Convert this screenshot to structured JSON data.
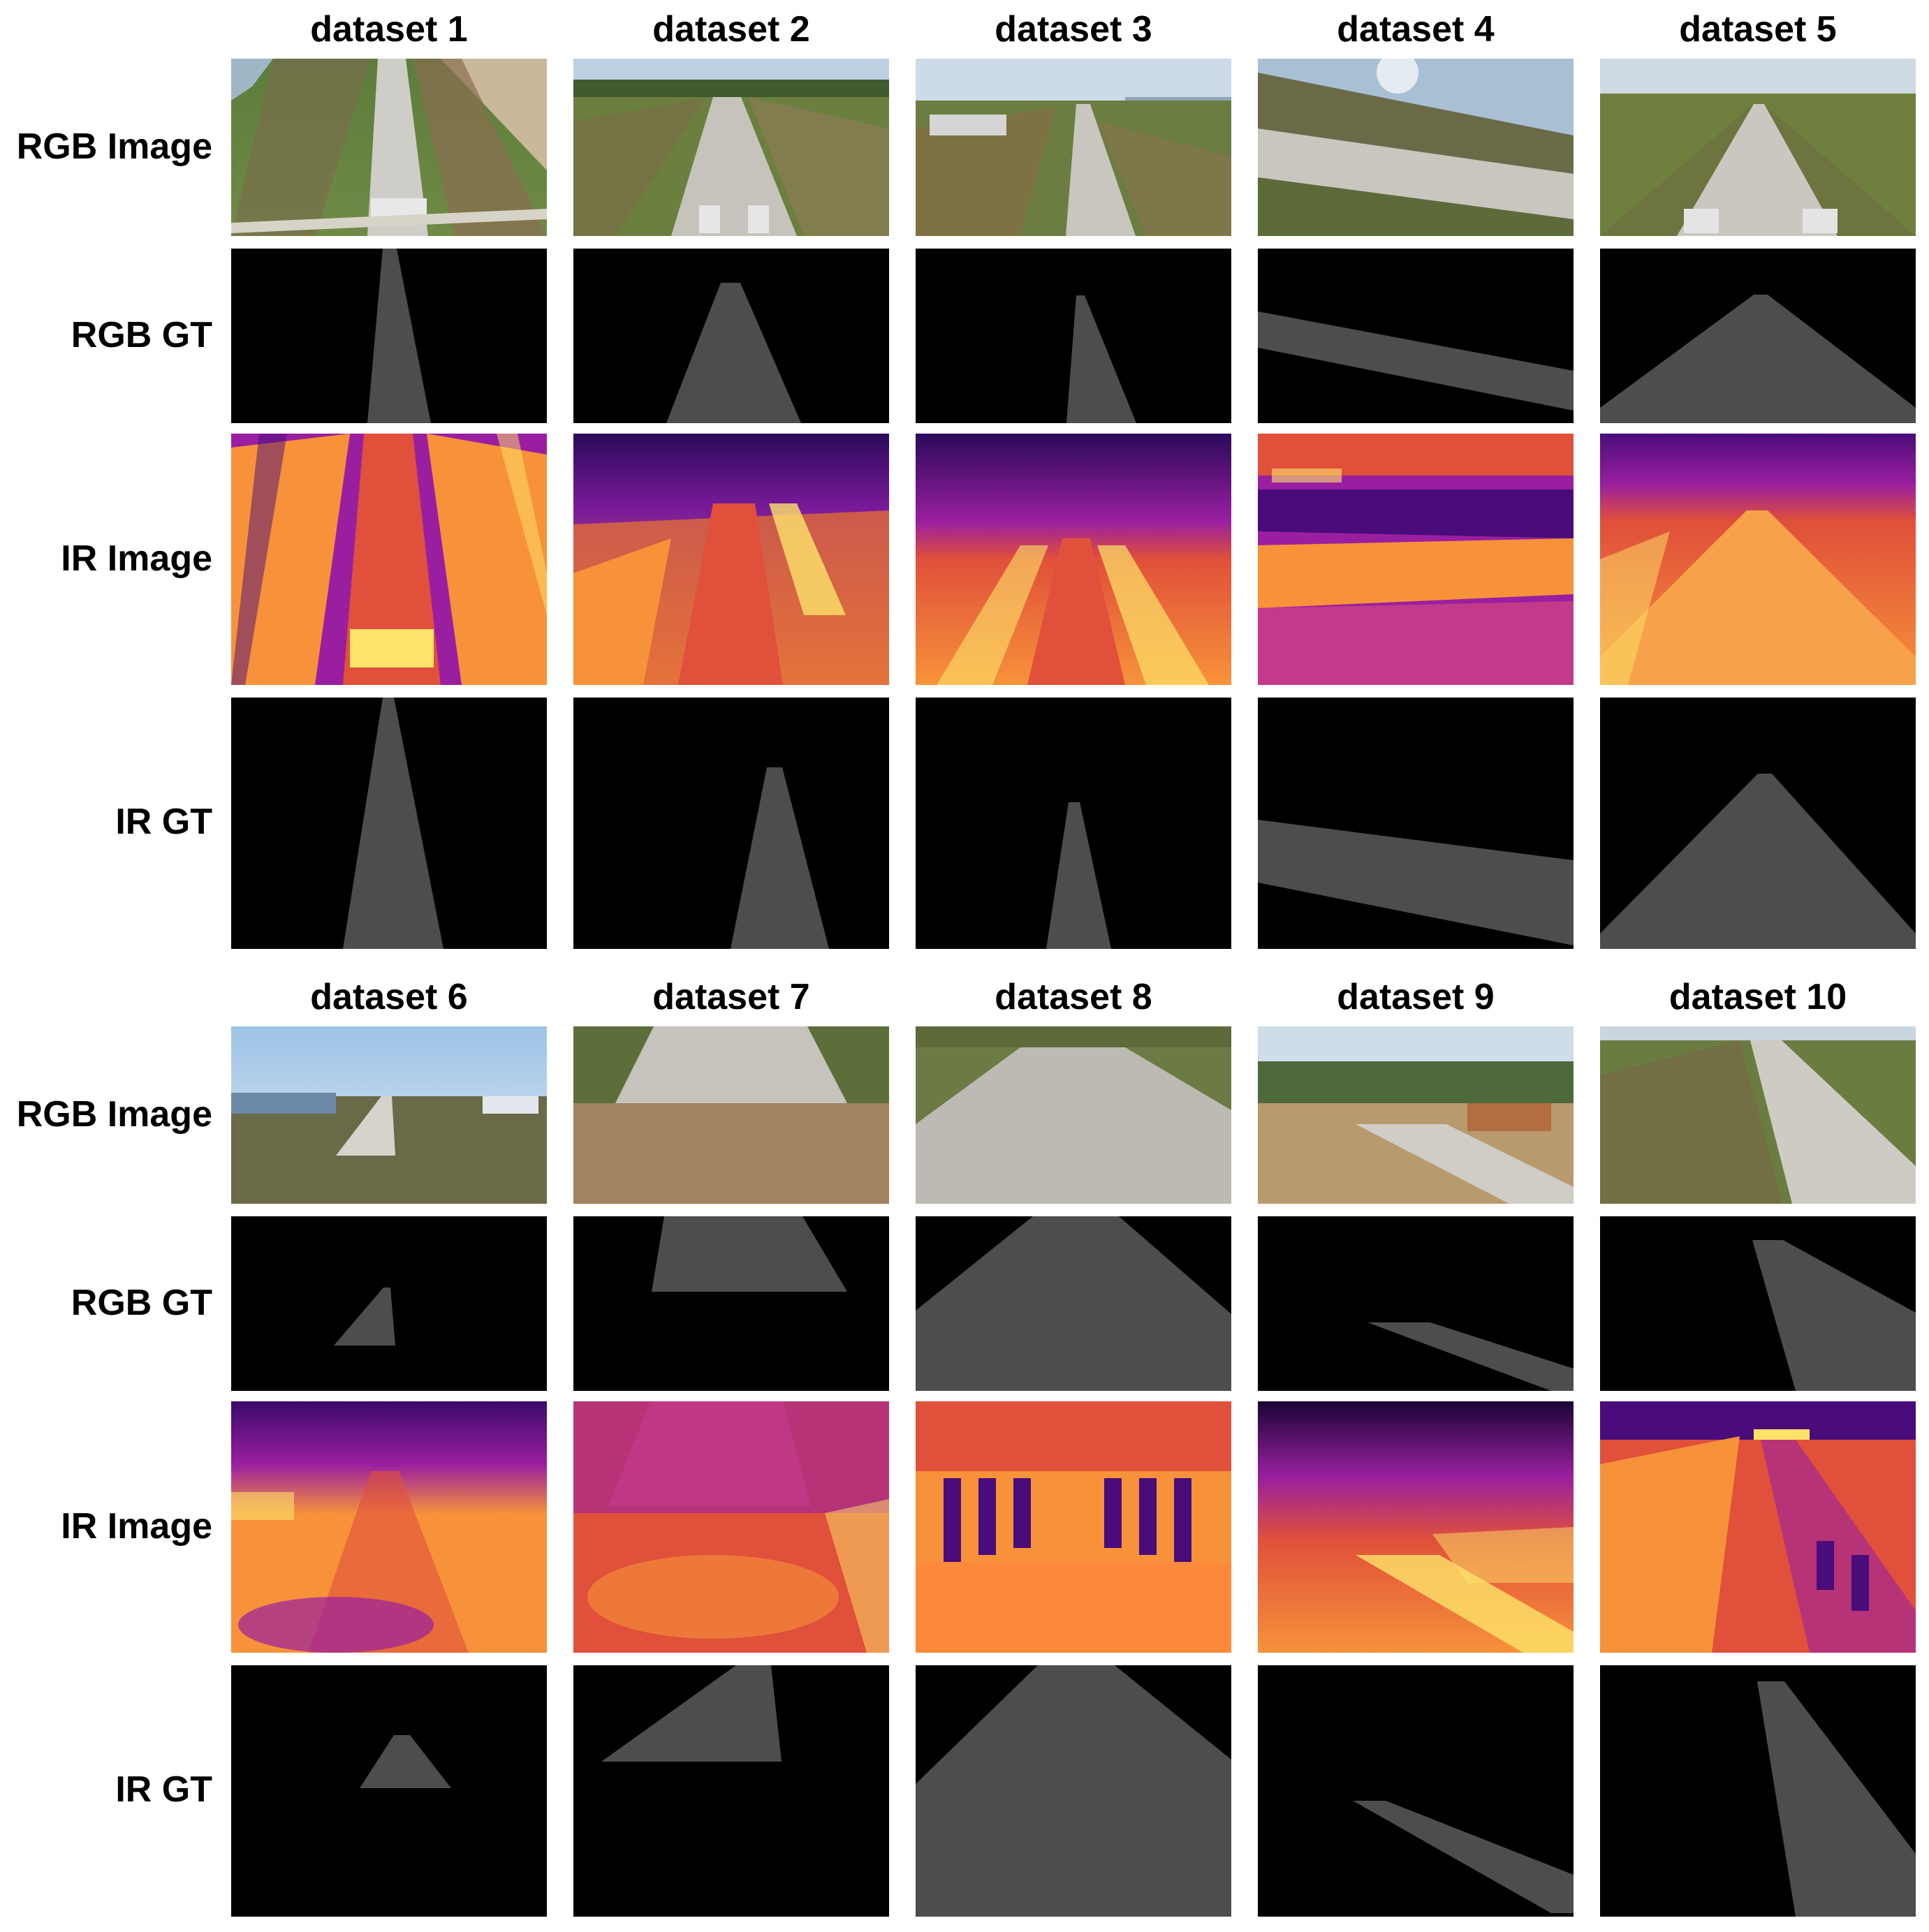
{
  "figure": {
    "row_labels": {
      "rgb_image": "RGB Image",
      "rgb_gt": "RGB GT",
      "ir_image": "IR Image",
      "ir_gt": "IR GT"
    },
    "datasets": [
      {
        "id": 1,
        "title": "dataset 1"
      },
      {
        "id": 2,
        "title": "dataset 2"
      },
      {
        "id": 3,
        "title": "dataset 3"
      },
      {
        "id": 4,
        "title": "dataset 4"
      },
      {
        "id": 5,
        "title": "dataset 5"
      },
      {
        "id": 6,
        "title": "dataset 6"
      },
      {
        "id": 7,
        "title": "dataset 7"
      },
      {
        "id": 8,
        "title": "dataset 8"
      },
      {
        "id": 9,
        "title": "dataset 9"
      },
      {
        "id": 10,
        "title": "dataset 10"
      }
    ],
    "colors": {
      "gt_background": "#000000",
      "gt_runway_mask": "#4d4d4d",
      "ir_palette": [
        "#1a0536",
        "#4a0c7a",
        "#9a1fa0",
        "#e0503a",
        "#f7923a",
        "#fde36a"
      ],
      "rgb_palette": [
        "#cfdceb",
        "#6f8d3f",
        "#7a6a4a",
        "#bfbfbf",
        "#a89070"
      ]
    }
  }
}
